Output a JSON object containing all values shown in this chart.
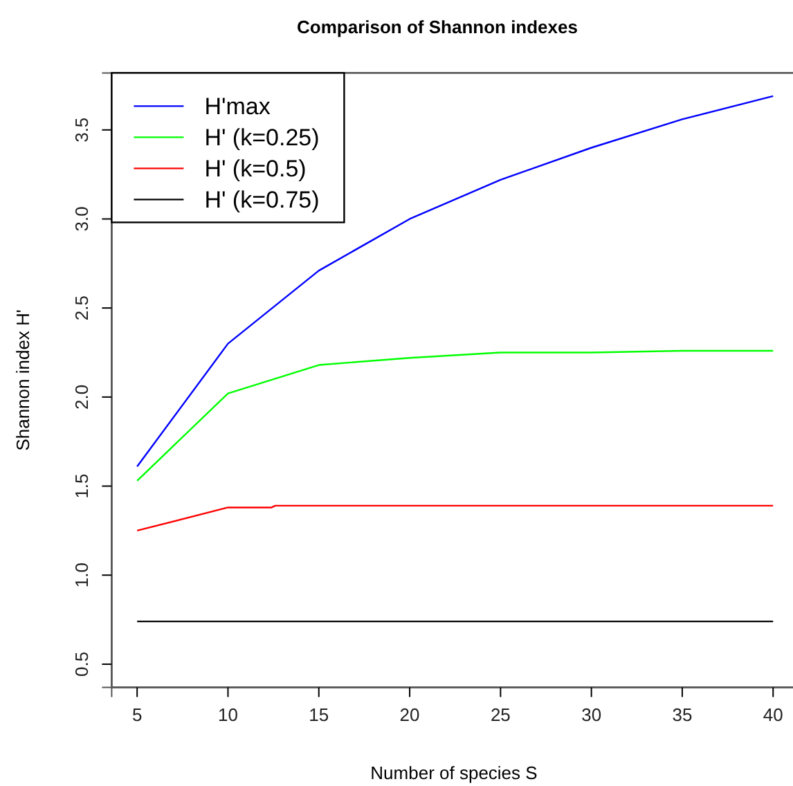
{
  "chart_data": {
    "type": "line",
    "title": "Comparison of Shannon indexes",
    "xlabel": "Number of species S",
    "ylabel": "Shannon index H'",
    "x": [
      5,
      10,
      15,
      20,
      25,
      30,
      35,
      40
    ],
    "series": [
      {
        "name": "H'max",
        "color": "#0000ff",
        "values": [
          1.61,
          2.3,
          2.71,
          3.0,
          3.22,
          3.4,
          3.56,
          3.69
        ]
      },
      {
        "name": "H' (k=0.25)",
        "color": "#00ff00",
        "values": [
          1.53,
          2.02,
          2.18,
          2.22,
          2.25,
          2.25,
          2.26,
          2.26
        ]
      },
      {
        "name": "H' (k=0.5)",
        "color": "#ff0000",
        "x": [
          5,
          10,
          12.4,
          12.6,
          40
        ],
        "values": [
          1.25,
          1.38,
          1.38,
          1.39,
          1.39
        ]
      },
      {
        "name": "H' (k=0.75)",
        "color": "#000000",
        "x": [
          5,
          7.4,
          7.6,
          40
        ],
        "values": [
          0.74,
          0.74,
          0.74,
          0.74
        ]
      }
    ],
    "xlim": [
      3.6,
      41.4
    ],
    "xticks": [
      5,
      10,
      15,
      20,
      25,
      30,
      35,
      40
    ],
    "ylim": [
      0.37,
      3.82
    ],
    "yticks": [
      0.5,
      {
        "value": 1,
        "label": "1.0"
      },
      1.5,
      {
        "value": 2,
        "label": "2.0"
      },
      2.5,
      {
        "value": 3,
        "label": "3.0"
      },
      3.5
    ],
    "legend": "top left",
    "grid": false
  }
}
